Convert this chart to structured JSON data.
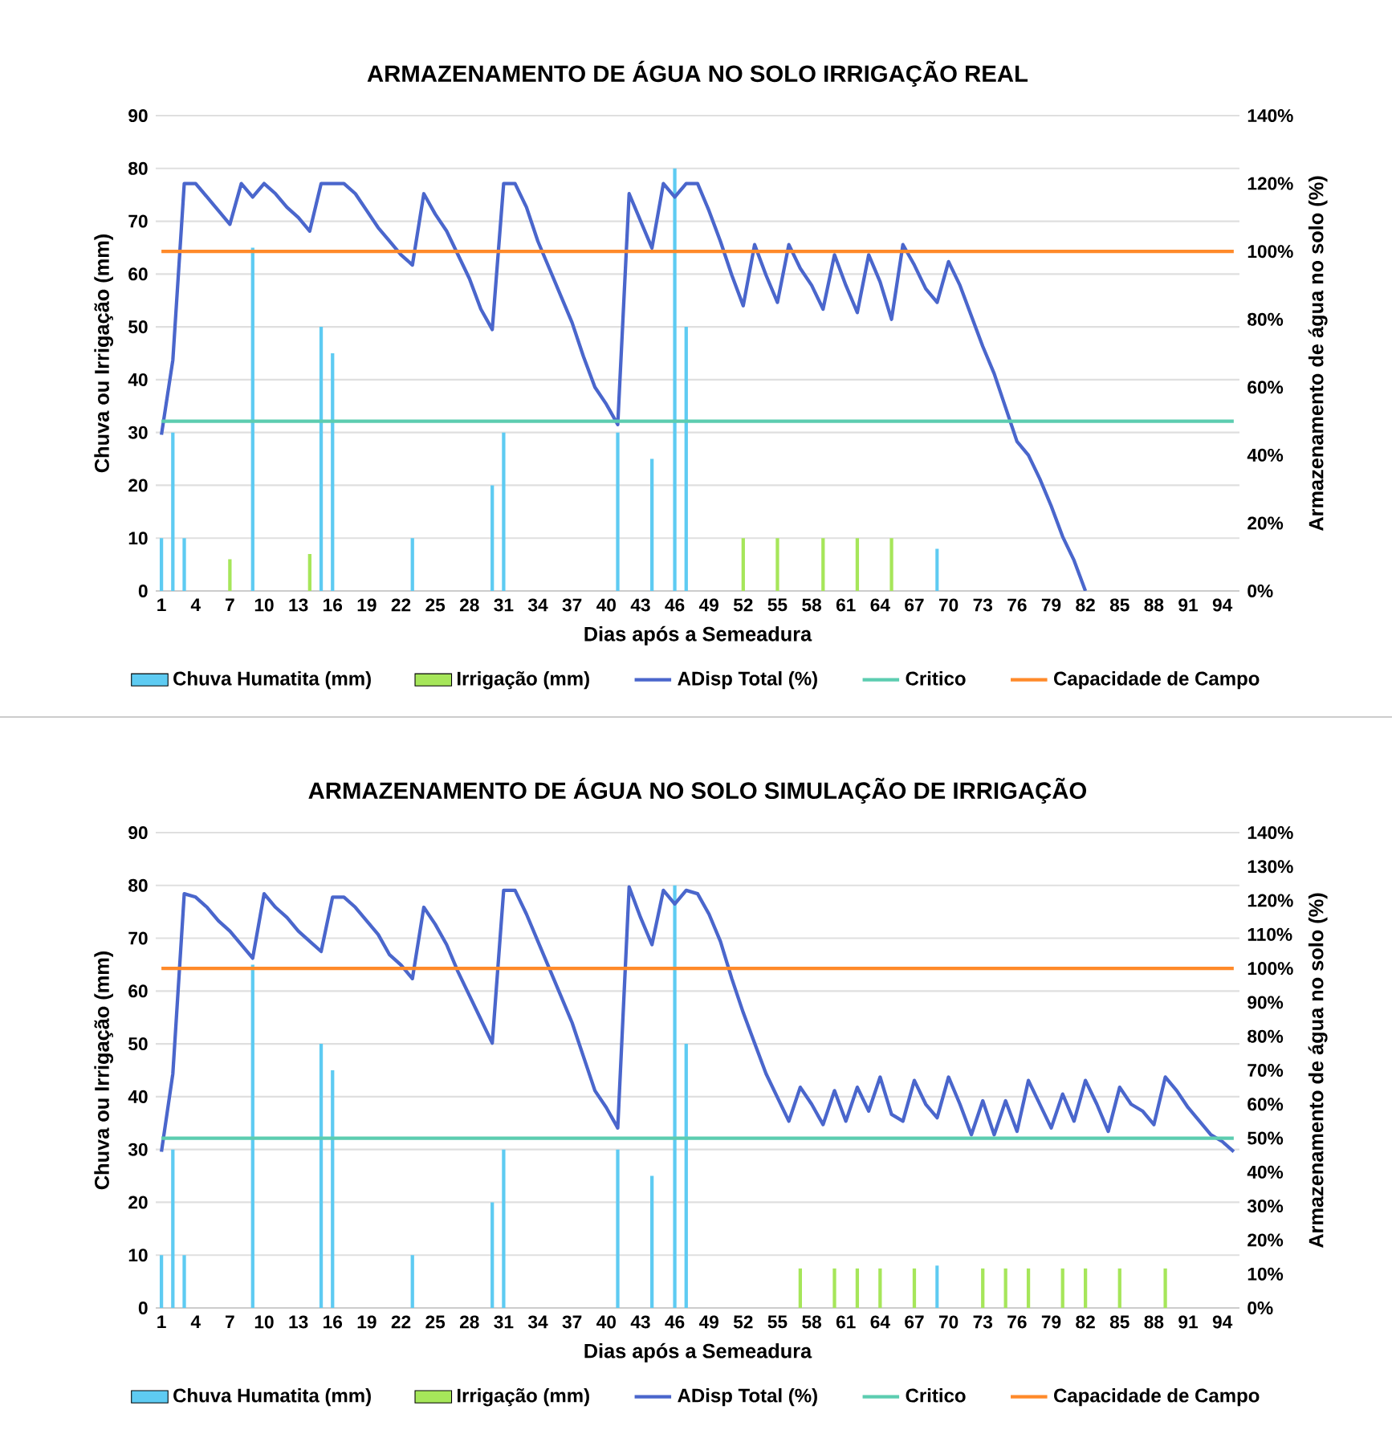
{
  "chart_data": [
    {
      "type": "bar",
      "title": "ARMAZENAMENTO DE ÁGUA  NO SOLO IRRIGAÇÃO REAL",
      "xlabel": "Dias após a Semeadura",
      "ylabel": "Chuva ou Irrigação (mm)",
      "y2label": "Armazenamento de água no solo (%)",
      "categories": [
        "1",
        null,
        null,
        "4",
        null,
        null,
        "7",
        null,
        null,
        "10",
        null,
        null,
        "13",
        null,
        null,
        "16",
        null,
        null,
        "19",
        null,
        null,
        "22",
        null,
        null,
        "25",
        null,
        null,
        "28",
        null,
        null,
        "31",
        null,
        null,
        "34",
        null,
        null,
        "37",
        null,
        null,
        "40",
        null,
        null,
        "43",
        null,
        null,
        "46",
        null,
        null,
        "49",
        null,
        null,
        "52",
        null,
        null,
        "55",
        null,
        null,
        "58",
        null,
        null,
        "61",
        null,
        null,
        "64",
        null,
        null,
        "67",
        null,
        null,
        "70",
        null,
        null,
        "73",
        null,
        null,
        "76",
        null,
        null,
        "79",
        null,
        null,
        "82",
        null,
        null,
        "85",
        null,
        null,
        "88",
        null,
        null,
        "91",
        null,
        null,
        "94",
        null
      ],
      "ylim": [
        0,
        90
      ],
      "yticks": [
        0,
        10,
        20,
        30,
        40,
        50,
        60,
        70,
        80,
        90
      ],
      "y2lim": [
        0,
        140
      ],
      "y2ticks": [
        {
          "value": 0,
          "label": "0%"
        },
        {
          "value": 20,
          "label": "20%"
        },
        {
          "value": 40,
          "label": "40%"
        },
        {
          "value": 60,
          "label": "60%"
        },
        {
          "value": 80,
          "label": "80%"
        },
        {
          "value": 100,
          "label": "100%"
        },
        {
          "value": 120,
          "label": "120%"
        },
        {
          "value": 140,
          "label": "140%"
        }
      ],
      "grid": "y",
      "legend": "bottom",
      "series": [
        {
          "name": "Chuva Humatita (mm)",
          "color": "#5ecbf2",
          "values": [
            10,
            30,
            10,
            null,
            null,
            null,
            null,
            null,
            65,
            null,
            null,
            null,
            null,
            null,
            50,
            45,
            null,
            null,
            null,
            null,
            null,
            null,
            10,
            null,
            null,
            null,
            null,
            null,
            null,
            20,
            30,
            null,
            null,
            null,
            null,
            null,
            null,
            null,
            null,
            null,
            30,
            null,
            null,
            25,
            null,
            80,
            50,
            null,
            null,
            null,
            null,
            null,
            null,
            null,
            null,
            null,
            null,
            null,
            null,
            null,
            null,
            null,
            null,
            null,
            null,
            null,
            null,
            null,
            8,
            null,
            null,
            null,
            null,
            null,
            null,
            null,
            null,
            null,
            null,
            null,
            null,
            null,
            null,
            null,
            null,
            null,
            null,
            null,
            null,
            null,
            null,
            null,
            null,
            null,
            null
          ]
        },
        {
          "name": "Irrigação (mm)",
          "color": "#a6e65a",
          "values": [
            null,
            null,
            null,
            null,
            null,
            null,
            6,
            null,
            null,
            null,
            null,
            null,
            null,
            7,
            null,
            null,
            null,
            null,
            null,
            null,
            null,
            null,
            null,
            null,
            null,
            null,
            null,
            null,
            null,
            null,
            null,
            null,
            null,
            null,
            null,
            null,
            null,
            null,
            null,
            null,
            null,
            null,
            null,
            null,
            null,
            null,
            null,
            null,
            null,
            null,
            null,
            10,
            null,
            null,
            10,
            null,
            null,
            null,
            10,
            null,
            null,
            10,
            null,
            null,
            10,
            null,
            null,
            null,
            null,
            null,
            null,
            null,
            null,
            null,
            null,
            null,
            null,
            null,
            null,
            null,
            null,
            null,
            null,
            null,
            null,
            null,
            null,
            null,
            null,
            null,
            null,
            null,
            null,
            null,
            null
          ]
        },
        {
          "name": "ADisp Total (%)",
          "type": "line",
          "axis": "y2",
          "color": "#4a66cc",
          "values": [
            46,
            68,
            120,
            120,
            116,
            112,
            108,
            120,
            116,
            120,
            117,
            113,
            110,
            106,
            120,
            120,
            120,
            117,
            112,
            107,
            103,
            99,
            96,
            117,
            111,
            106,
            99,
            92,
            83,
            77,
            120,
            120,
            113,
            103,
            95,
            87,
            79,
            69,
            60,
            55,
            49,
            117,
            109,
            101,
            120,
            116,
            120,
            120,
            112,
            103,
            93,
            84,
            102,
            93,
            85,
            102,
            95,
            90,
            83,
            99,
            90,
            82,
            99,
            91,
            80,
            102,
            96,
            89,
            85,
            97,
            90,
            81,
            72,
            64,
            54,
            44,
            40,
            33,
            25,
            16,
            9,
            0,
            null,
            null,
            null,
            null,
            null,
            null,
            null,
            null,
            null,
            null,
            null,
            null,
            null
          ]
        },
        {
          "name": "Critico",
          "type": "line",
          "axis": "y2",
          "color": "#5ccdb0",
          "values": [
            50,
            50,
            50,
            50,
            50,
            50,
            50,
            50,
            50,
            50,
            50,
            50,
            50,
            50,
            50,
            50,
            50,
            50,
            50,
            50,
            50,
            50,
            50,
            50,
            50,
            50,
            50,
            50,
            50,
            50,
            50,
            50,
            50,
            50,
            50,
            50,
            50,
            50,
            50,
            50,
            50,
            50,
            50,
            50,
            50,
            50,
            50,
            50,
            50,
            50,
            50,
            50,
            50,
            50,
            50,
            50,
            50,
            50,
            50,
            50,
            50,
            50,
            50,
            50,
            50,
            50,
            50,
            50,
            50,
            50,
            50,
            50,
            50,
            50,
            50,
            50,
            50,
            50,
            50,
            50,
            50,
            50,
            50,
            50,
            50,
            50,
            50,
            50,
            50,
            50,
            50,
            50,
            50,
            50,
            50
          ]
        },
        {
          "name": "Capacidade de Campo",
          "type": "line",
          "axis": "y2",
          "color": "#ff8a2a",
          "values": [
            100,
            100,
            100,
            100,
            100,
            100,
            100,
            100,
            100,
            100,
            100,
            100,
            100,
            100,
            100,
            100,
            100,
            100,
            100,
            100,
            100,
            100,
            100,
            100,
            100,
            100,
            100,
            100,
            100,
            100,
            100,
            100,
            100,
            100,
            100,
            100,
            100,
            100,
            100,
            100,
            100,
            100,
            100,
            100,
            100,
            100,
            100,
            100,
            100,
            100,
            100,
            100,
            100,
            100,
            100,
            100,
            100,
            100,
            100,
            100,
            100,
            100,
            100,
            100,
            100,
            100,
            100,
            100,
            100,
            100,
            100,
            100,
            100,
            100,
            100,
            100,
            100,
            100,
            100,
            100,
            100,
            100,
            100,
            100,
            100,
            100,
            100,
            100,
            100,
            100,
            100,
            100,
            100,
            100,
            100
          ]
        }
      ]
    },
    {
      "type": "bar",
      "title": "ARMAZENAMENTO DE ÁGUA  NO SOLO SIMULAÇÃO DE IRRIGAÇÃO",
      "xlabel": "Dias após a Semeadura",
      "ylabel": "Chuva ou Irrigação (mm)",
      "y2label": "Armazenamento de água no solo (%)",
      "categories": [
        "1",
        null,
        null,
        "4",
        null,
        null,
        "7",
        null,
        null,
        "10",
        null,
        null,
        "13",
        null,
        null,
        "16",
        null,
        null,
        "19",
        null,
        null,
        "22",
        null,
        null,
        "25",
        null,
        null,
        "28",
        null,
        null,
        "31",
        null,
        null,
        "34",
        null,
        null,
        "37",
        null,
        null,
        "40",
        null,
        null,
        "43",
        null,
        null,
        "46",
        null,
        null,
        "49",
        null,
        null,
        "52",
        null,
        null,
        "55",
        null,
        null,
        "58",
        null,
        null,
        "61",
        null,
        null,
        "64",
        null,
        null,
        "67",
        null,
        null,
        "70",
        null,
        null,
        "73",
        null,
        null,
        "76",
        null,
        null,
        "79",
        null,
        null,
        "82",
        null,
        null,
        "85",
        null,
        null,
        "88",
        null,
        null,
        "91",
        null,
        null,
        "94",
        null
      ],
      "ylim": [
        0,
        90
      ],
      "yticks": [
        0,
        10,
        20,
        30,
        40,
        50,
        60,
        70,
        80,
        90
      ],
      "y2lim": [
        0,
        140
      ],
      "y2ticks": [
        {
          "value": 0,
          "label": "0%"
        },
        {
          "value": 10,
          "label": "10%"
        },
        {
          "value": 20,
          "label": "20%"
        },
        {
          "value": 30,
          "label": "30%"
        },
        {
          "value": 40,
          "label": "40%"
        },
        {
          "value": 50,
          "label": "50%"
        },
        {
          "value": 60,
          "label": "60%"
        },
        {
          "value": 70,
          "label": "70%"
        },
        {
          "value": 80,
          "label": "80%"
        },
        {
          "value": 90,
          "label": "90%"
        },
        {
          "value": 100,
          "label": "100%"
        },
        {
          "value": 110,
          "label": "110%"
        },
        {
          "value": 120,
          "label": "120%"
        },
        {
          "value": 130,
          "label": "130%"
        },
        {
          "value": 140,
          "label": "140%"
        }
      ],
      "grid": "y",
      "legend": "bottom",
      "series": [
        {
          "name": "Chuva Humatita (mm)",
          "color": "#5ecbf2",
          "values": [
            10,
            30,
            10,
            null,
            null,
            null,
            null,
            null,
            65,
            null,
            null,
            null,
            null,
            null,
            50,
            45,
            null,
            null,
            null,
            null,
            null,
            null,
            10,
            null,
            null,
            null,
            null,
            null,
            null,
            20,
            30,
            null,
            null,
            null,
            null,
            null,
            null,
            null,
            null,
            null,
            30,
            null,
            null,
            25,
            null,
            80,
            50,
            null,
            null,
            null,
            null,
            null,
            null,
            null,
            null,
            null,
            null,
            null,
            null,
            null,
            null,
            null,
            null,
            null,
            null,
            null,
            null,
            null,
            8,
            null,
            null,
            null,
            null,
            null,
            null,
            null,
            null,
            null,
            null,
            null,
            null,
            null,
            null,
            null,
            null,
            null,
            null,
            null,
            null,
            null,
            null,
            null,
            null,
            null,
            null
          ]
        },
        {
          "name": "Irrigação (mm)",
          "color": "#a6e65a",
          "values": [
            null,
            null,
            null,
            null,
            null,
            null,
            null,
            null,
            null,
            null,
            null,
            null,
            null,
            null,
            null,
            null,
            null,
            null,
            null,
            null,
            null,
            null,
            null,
            null,
            null,
            null,
            null,
            null,
            null,
            null,
            null,
            null,
            null,
            null,
            null,
            null,
            null,
            null,
            null,
            null,
            null,
            null,
            null,
            null,
            null,
            null,
            null,
            null,
            null,
            null,
            null,
            null,
            null,
            null,
            null,
            null,
            7.5,
            null,
            null,
            7.5,
            null,
            7.5,
            null,
            7.5,
            null,
            null,
            7.5,
            null,
            null,
            null,
            null,
            null,
            7.5,
            null,
            7.5,
            null,
            7.5,
            null,
            null,
            7.5,
            null,
            7.5,
            null,
            null,
            7.5,
            null,
            null,
            null,
            7.5,
            null,
            null,
            null,
            null,
            null,
            null
          ]
        },
        {
          "name": "ADisp Total (%)",
          "type": "line",
          "axis": "y2",
          "color": "#4a66cc",
          "values": [
            46,
            69,
            122,
            121,
            118,
            114,
            111,
            107,
            103,
            122,
            118,
            115,
            111,
            108,
            105,
            121,
            121,
            118,
            114,
            110,
            104,
            101,
            97,
            118,
            113,
            107,
            99,
            92,
            85,
            78,
            123,
            123,
            116,
            108,
            100,
            92,
            84,
            74,
            64,
            59,
            53,
            124,
            115,
            107,
            123,
            119,
            123,
            122,
            116,
            108,
            97,
            87,
            78,
            69,
            62,
            55,
            65,
            60,
            54,
            64,
            55,
            65,
            58,
            68,
            57,
            55,
            67,
            60,
            56,
            68,
            60,
            51,
            61,
            51,
            61,
            52,
            67,
            60,
            53,
            63,
            55,
            67,
            60,
            52,
            65,
            60,
            58,
            54,
            68,
            64,
            59,
            55,
            51,
            49,
            46
          ]
        },
        {
          "name": "Critico",
          "type": "line",
          "axis": "y2",
          "color": "#5ccdb0",
          "values": [
            50,
            50,
            50,
            50,
            50,
            50,
            50,
            50,
            50,
            50,
            50,
            50,
            50,
            50,
            50,
            50,
            50,
            50,
            50,
            50,
            50,
            50,
            50,
            50,
            50,
            50,
            50,
            50,
            50,
            50,
            50,
            50,
            50,
            50,
            50,
            50,
            50,
            50,
            50,
            50,
            50,
            50,
            50,
            50,
            50,
            50,
            50,
            50,
            50,
            50,
            50,
            50,
            50,
            50,
            50,
            50,
            50,
            50,
            50,
            50,
            50,
            50,
            50,
            50,
            50,
            50,
            50,
            50,
            50,
            50,
            50,
            50,
            50,
            50,
            50,
            50,
            50,
            50,
            50,
            50,
            50,
            50,
            50,
            50,
            50,
            50,
            50,
            50,
            50,
            50,
            50,
            50,
            50,
            50,
            50
          ]
        },
        {
          "name": "Capacidade de Campo",
          "type": "line",
          "axis": "y2",
          "color": "#ff8a2a",
          "values": [
            100,
            100,
            100,
            100,
            100,
            100,
            100,
            100,
            100,
            100,
            100,
            100,
            100,
            100,
            100,
            100,
            100,
            100,
            100,
            100,
            100,
            100,
            100,
            100,
            100,
            100,
            100,
            100,
            100,
            100,
            100,
            100,
            100,
            100,
            100,
            100,
            100,
            100,
            100,
            100,
            100,
            100,
            100,
            100,
            100,
            100,
            100,
            100,
            100,
            100,
            100,
            100,
            100,
            100,
            100,
            100,
            100,
            100,
            100,
            100,
            100,
            100,
            100,
            100,
            100,
            100,
            100,
            100,
            100,
            100,
            100,
            100,
            100,
            100,
            100,
            100,
            100,
            100,
            100,
            100,
            100,
            100,
            100,
            100,
            100,
            100,
            100,
            100,
            100,
            100,
            100,
            100,
            100,
            100,
            100
          ]
        }
      ]
    }
  ]
}
